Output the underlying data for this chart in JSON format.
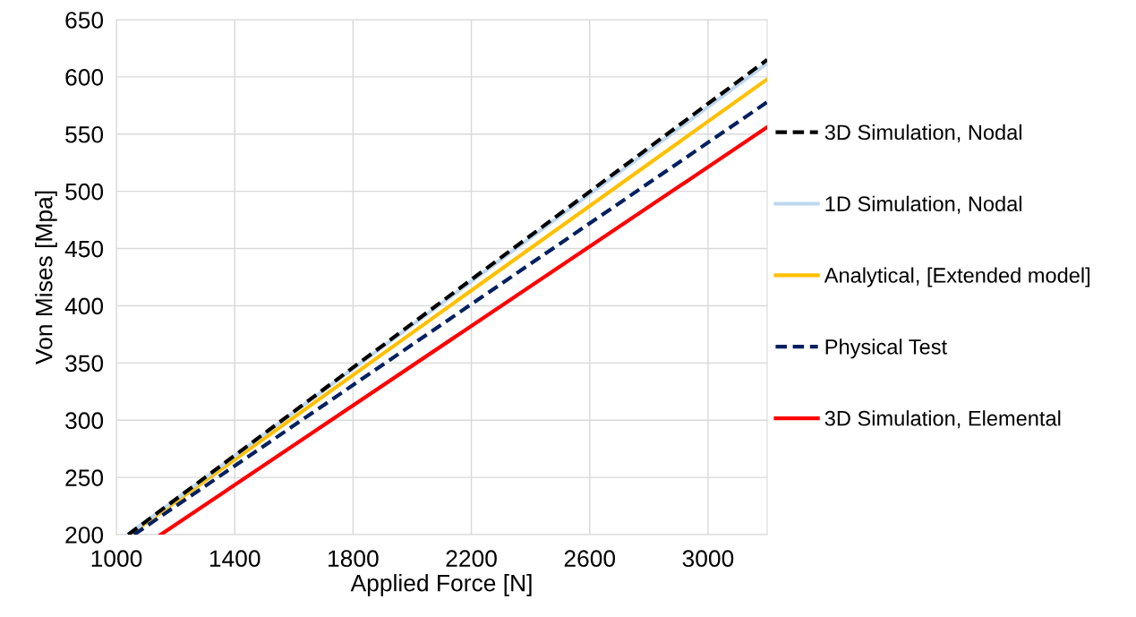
{
  "chart_data": {
    "type": "line",
    "xlabel": "Applied Force [N]",
    "ylabel": "Von Mises [Mpa]",
    "xlim": [
      1000,
      3200
    ],
    "xticks": [
      1000,
      1400,
      1800,
      2200,
      2600,
      3000
    ],
    "ylim": [
      200,
      650
    ],
    "yticks": [
      200,
      250,
      300,
      350,
      400,
      450,
      500,
      550,
      600,
      650
    ],
    "grid": true,
    "legend": "right",
    "marker": "none",
    "series": [
      {
        "name": "3D Simulation, Nodal",
        "color": "#000000",
        "line_style": "dashed",
        "x": [
          1040,
          3200
        ],
        "values": [
          200,
          615
        ]
      },
      {
        "name": "1D Simulation, Nodal",
        "color": "#bdd7ee",
        "line_style": "solid",
        "x": [
          1040,
          3200
        ],
        "values": [
          200,
          612
        ]
      },
      {
        "name": "Analytical, [Extended model]",
        "color": "#ffc000",
        "line_style": "solid",
        "x": [
          1045,
          3200
        ],
        "values": [
          200,
          598
        ]
      },
      {
        "name": "Physical Test",
        "color": "#002060",
        "line_style": "dashed",
        "x": [
          1060,
          3200
        ],
        "values": [
          200,
          578
        ]
      },
      {
        "name": "3D Simulation, Elemental",
        "color": "#ff0000",
        "line_style": "solid",
        "x": [
          1150,
          3200
        ],
        "values": [
          200,
          556
        ]
      }
    ]
  }
}
